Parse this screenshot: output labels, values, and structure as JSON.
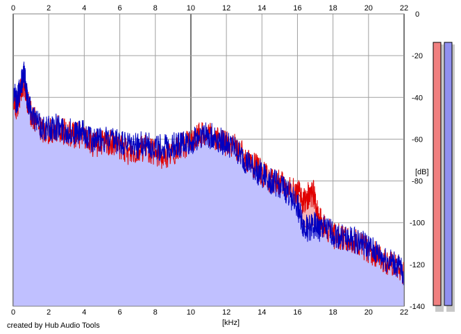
{
  "footer": "created by Hub Audio Tools",
  "chart_data": {
    "type": "area",
    "xlabel": "[kHz]",
    "ylabel": "[dB]",
    "xlim": [
      0,
      22
    ],
    "ylim": [
      -140,
      0
    ],
    "x_ticks": [
      0,
      2,
      4,
      6,
      8,
      10,
      12,
      14,
      16,
      18,
      20,
      22
    ],
    "y_ticks": [
      0,
      -20,
      -40,
      -60,
      -80,
      -100,
      -120,
      -140
    ],
    "grid": true,
    "colors": {
      "fill": "#c0c0ff",
      "left_channel": "#e00000",
      "right_channel": "#0000c0",
      "highlight_fill": "#f4b6b6",
      "grid": "#a0a0a0",
      "grid_major": "#707070",
      "meter_left": "#f08080",
      "meter_right": "#9090f0"
    },
    "series": [
      {
        "color": "#e00000",
        "x": [
          0,
          0.2,
          0.4,
          0.6,
          0.8,
          1,
          1.5,
          2,
          2.5,
          3,
          3.5,
          4,
          4.5,
          5,
          5.5,
          6,
          6.5,
          7,
          7.5,
          8,
          8.5,
          9,
          9.5,
          10,
          10.5,
          11,
          11.5,
          12,
          12.5,
          13,
          13.5,
          14,
          14.5,
          15,
          15.5,
          16,
          16.3,
          16.6,
          16.9,
          17.2,
          17.5,
          18,
          18.5,
          19,
          19.5,
          20,
          20.5,
          21,
          21.5,
          22
        ],
        "y": [
          -40,
          -45,
          -38,
          -33,
          -42,
          -48,
          -55,
          -56,
          -55,
          -57,
          -58,
          -58,
          -63,
          -62,
          -62,
          -64,
          -66,
          -65,
          -64,
          -67,
          -68,
          -66,
          -63,
          -62,
          -57,
          -58,
          -60,
          -62,
          -64,
          -68,
          -72,
          -76,
          -80,
          -81,
          -84,
          -85,
          -90,
          -87,
          -86,
          -98,
          -102,
          -106,
          -107,
          -108,
          -110,
          -113,
          -116,
          -119,
          -121,
          -125
        ]
      },
      {
        "color": "#0000c0",
        "x": [
          0,
          0.2,
          0.4,
          0.6,
          0.8,
          1,
          1.5,
          2,
          2.5,
          3,
          3.5,
          4,
          4.5,
          5,
          5.5,
          6,
          6.5,
          7,
          7.5,
          8,
          8.5,
          9,
          9.5,
          10,
          10.5,
          11,
          11.5,
          12,
          12.5,
          13,
          13.5,
          14,
          14.5,
          15,
          15.5,
          16,
          16.3,
          16.6,
          16.9,
          17.2,
          17.5,
          18,
          18.5,
          19,
          19.5,
          20,
          20.5,
          21,
          21.5,
          22
        ],
        "y": [
          -38,
          -42,
          -35,
          -28,
          -40,
          -46,
          -54,
          -55,
          -54,
          -56,
          -57,
          -57,
          -61,
          -60,
          -61,
          -62,
          -63,
          -63,
          -62,
          -64,
          -64,
          -63,
          -62,
          -62,
          -58,
          -58,
          -60,
          -62,
          -65,
          -70,
          -74,
          -77,
          -80,
          -82,
          -86,
          -92,
          -101,
          -103,
          -101,
          -103,
          -103,
          -105,
          -107,
          -108,
          -109,
          -112,
          -115,
          -118,
          -120,
          -124
        ]
      }
    ]
  }
}
